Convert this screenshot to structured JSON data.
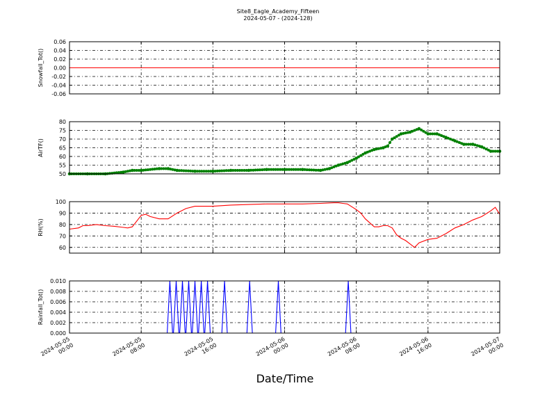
{
  "figure": {
    "title_line1": "Site8_Eagle_Academy_Fifteen",
    "title_line2": "2024-05-07 - (2024-128)",
    "xlabel": "Date/Time"
  },
  "chart_data": [
    {
      "type": "line",
      "ylabel": "Snowfall_Tot()",
      "ylim": [
        -0.06,
        0.06
      ],
      "yticks": [
        "0.06",
        "0.04",
        "0.02",
        "0.00",
        "-0.02",
        "-0.04",
        "-0.06"
      ],
      "color": "#ff0000",
      "grid": true,
      "x": [
        0,
        48
      ],
      "y": [
        0,
        0
      ]
    },
    {
      "type": "line",
      "ylabel": "AirTF()",
      "ylim": [
        50,
        80
      ],
      "yticks": [
        "80",
        "75",
        "70",
        "65",
        "60",
        "55",
        "50"
      ],
      "color": "#008000",
      "markers": true,
      "grid": true,
      "x": [
        0,
        2,
        4,
        6,
        7,
        8,
        10,
        11,
        12,
        14,
        16,
        18,
        20,
        22,
        24,
        26,
        28,
        29,
        30,
        31,
        32,
        33,
        34,
        35,
        35.5,
        36,
        37,
        38,
        39,
        40,
        41,
        42,
        43,
        44,
        45,
        46,
        47,
        48
      ],
      "y": [
        50,
        50,
        50,
        51,
        52,
        52,
        53,
        53,
        52,
        51.5,
        51.5,
        52,
        52,
        52.5,
        52.5,
        52.5,
        52,
        53,
        55,
        56.5,
        59,
        62,
        64,
        65,
        66,
        70,
        73,
        74,
        76,
        73,
        73,
        71,
        69,
        67,
        67,
        65.5,
        63,
        63
      ]
    },
    {
      "type": "line",
      "ylabel": "RH(%)",
      "ylim": [
        55,
        100
      ],
      "yticks": [
        "100",
        "90",
        "80",
        "70",
        "60"
      ],
      "color": "#ff0000",
      "grid": true,
      "x": [
        0,
        1,
        1.5,
        2,
        3,
        4,
        5,
        6,
        6.5,
        7,
        8,
        8.5,
        9,
        10,
        11,
        12,
        13,
        14,
        16,
        18,
        20,
        22,
        24,
        26,
        28,
        29.5,
        30,
        30.5,
        31,
        32,
        32.5,
        33,
        34,
        34.5,
        35,
        35.5,
        36,
        36.5,
        37,
        37.5,
        38,
        38.5,
        39,
        40,
        41,
        42,
        43,
        44,
        45,
        46,
        47,
        47.5,
        48
      ],
      "y": [
        76,
        77,
        79,
        79,
        80,
        79,
        78.5,
        77.5,
        77,
        78,
        88,
        89,
        87,
        85,
        85,
        90,
        94,
        96,
        96,
        97,
        97.5,
        98,
        98,
        98,
        98.5,
        99,
        99,
        98.5,
        98,
        93,
        90,
        85,
        78,
        78,
        79,
        79,
        77,
        71,
        68,
        66,
        63,
        60,
        64,
        67,
        68,
        72,
        77,
        80,
        84,
        87,
        92,
        95,
        89
      ]
    },
    {
      "type": "line",
      "ylabel": "Rainfall_Tot()",
      "ylim": [
        0,
        0.01
      ],
      "yticks": [
        "0.010",
        "0.008",
        "0.006",
        "0.004",
        "0.002",
        "0.000"
      ],
      "color": "#0000ff",
      "grid": true,
      "x": [
        0,
        10.9,
        11.2,
        11.5,
        11.6,
        11.9,
        12.2,
        12.3,
        12.6,
        12.9,
        13.0,
        13.3,
        13.6,
        13.7,
        14.0,
        14.3,
        14.4,
        14.7,
        15.0,
        15.1,
        15.4,
        15.7,
        17.0,
        17.3,
        17.6,
        19.8,
        20.1,
        20.4,
        23.0,
        23.3,
        23.6,
        30.8,
        31.1,
        31.4,
        48
      ],
      "y": [
        0,
        0,
        0.01,
        0,
        0,
        0.01,
        0,
        0,
        0.01,
        0,
        0,
        0.01,
        0,
        0,
        0.01,
        0,
        0,
        0.01,
        0,
        0,
        0.01,
        0,
        0,
        0.01,
        0,
        0,
        0.01,
        0,
        0,
        0.01,
        0,
        0,
        0.01,
        0,
        0
      ]
    }
  ],
  "x_axis": {
    "range_hours": [
      0,
      48
    ],
    "ticks": [
      {
        "h": 0,
        "line1": "2024-05-05",
        "line2": "00:00"
      },
      {
        "h": 8,
        "line1": "2024-05-05",
        "line2": "08:00"
      },
      {
        "h": 16,
        "line1": "2024-05-05",
        "line2": "16:00"
      },
      {
        "h": 24,
        "line1": "2024-05-06",
        "line2": "00:00"
      },
      {
        "h": 32,
        "line1": "2024-05-06",
        "line2": "08:00"
      },
      {
        "h": 40,
        "line1": "2024-05-06",
        "line2": "16:00"
      },
      {
        "h": 48,
        "line1": "2024-05-07",
        "line2": "00:00"
      }
    ]
  }
}
